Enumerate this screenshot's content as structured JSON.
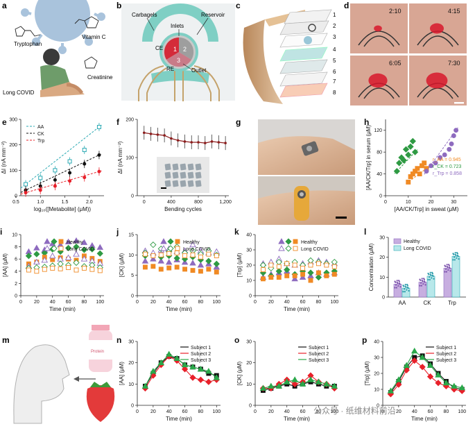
{
  "figure": {
    "panel_letters": [
      "a",
      "b",
      "c",
      "d",
      "e",
      "f",
      "g",
      "h",
      "i",
      "j",
      "k",
      "l",
      "m",
      "n",
      "o",
      "p"
    ],
    "colors": {
      "AA": "#2aa9b3",
      "CK": "#111111",
      "Trp": "#e8202a",
      "aa_h": "#8e6bbf",
      "ck_h": "#2e9a43",
      "trp_h": "#f08a24",
      "healthy_fill": "#c7aee0",
      "covid_fill": "#b8e8ea",
      "s1": "#111111",
      "s2": "#e8202a",
      "s3": "#2aa84a",
      "teal_struct": "#7fcfc4",
      "chip_bg": "#eef1f2"
    }
  },
  "panel_a": {
    "labels": {
      "tryptophan": "Tryptophan",
      "vitamin_c": "Vitamin C",
      "creatinine": "Creatinine",
      "long_covid": "Long COVID"
    },
    "icons": [
      "virus-icon",
      "person-sitting-icon",
      "molecule-icon"
    ]
  },
  "panel_b": {
    "labels": {
      "carbagels": "Carbagels",
      "reservoir": "Reservoir",
      "inlets": "Inlets",
      "ce": "CE",
      "re": "RE",
      "outlet": "Outlet",
      "n1": "1",
      "n2": "2",
      "n3": "3"
    }
  },
  "panel_c": {
    "layers": [
      "1",
      "2",
      "3",
      "4",
      "5",
      "6",
      "7",
      "8"
    ]
  },
  "panel_d": {
    "times": [
      "2:10",
      "4:15",
      "6:05",
      "7:30"
    ]
  },
  "panel_g": {
    "icons": [
      "wrist-patch-photo",
      "forearm-patch-photo"
    ]
  },
  "panel_m": {
    "bottle_text": "Protein",
    "icons": [
      "person-profile-icon",
      "bottle-icon",
      "strawberry-icon"
    ]
  },
  "watermark": "公众号 · 纸维材料前沿",
  "chart_data": [
    {
      "panel": "e",
      "type": "scatter",
      "xlabel": "log₁₀([Metabolite] (μM))",
      "ylabel": "ΔI (nA mm⁻²)",
      "xlim": [
        0.6,
        2.3
      ],
      "ylim": [
        0,
        300
      ],
      "xticks": [
        "0.5",
        "1.0",
        "1.5",
        "2.0"
      ],
      "yticks": [
        "0",
        "100",
        "200",
        "300"
      ],
      "legend": [
        "AA",
        "CK",
        "Trp"
      ],
      "series": [
        {
          "name": "AA",
          "x": [
            0.7,
            1.0,
            1.3,
            1.6,
            1.9,
            2.2
          ],
          "y": [
            45,
            70,
            100,
            135,
            180,
            270
          ]
        },
        {
          "name": "CK",
          "x": [
            0.7,
            1.0,
            1.3,
            1.6,
            1.9,
            2.2
          ],
          "y": [
            22,
            38,
            62,
            90,
            125,
            160
          ]
        },
        {
          "name": "Trp",
          "x": [
            0.7,
            1.0,
            1.3,
            1.6,
            1.9,
            2.2
          ],
          "y": [
            12,
            22,
            38,
            58,
            72,
            95
          ]
        }
      ]
    },
    {
      "panel": "f",
      "type": "line",
      "xlabel": "Bending cycles",
      "ylabel": "ΔI (nA mm⁻²)",
      "xlim": [
        -100,
        1250
      ],
      "ylim": [
        0,
        200
      ],
      "xticks": [
        "0",
        "400",
        "800",
        "1,200"
      ],
      "yticks": [
        "0",
        "100",
        "200"
      ],
      "series": [
        {
          "name": "",
          "x": [
            0,
            100,
            200,
            300,
            400,
            500,
            600,
            700,
            800,
            900,
            1000,
            1100,
            1200
          ],
          "y": [
            165,
            162,
            160,
            158,
            150,
            145,
            142,
            140,
            140,
            138,
            142,
            140,
            138
          ]
        }
      ]
    },
    {
      "panel": "h",
      "type": "scatter",
      "xlabel": "[AA/CK/Trp] in sweat (μM)",
      "ylabel": "[AA/CK/Trp] in serum (μM)",
      "xlim": [
        0,
        36
      ],
      "ylim": [
        0,
        140
      ],
      "xticks": [
        "0",
        "10",
        "20",
        "30"
      ],
      "yticks": [
        "0",
        "40",
        "80",
        "120"
      ],
      "annotations": [
        "r_AA = 0.945",
        "r_CK = 0.723",
        "r_Trp = 0.858"
      ],
      "series": [
        {
          "name": "AA",
          "x": [
            5,
            6,
            7,
            8,
            9,
            10,
            11,
            12,
            13
          ],
          "y": [
            45,
            60,
            70,
            65,
            85,
            75,
            90,
            100,
            80
          ]
        },
        {
          "name": "CK",
          "x": [
            10,
            11,
            12,
            13,
            14,
            15,
            16,
            17,
            18
          ],
          "y": [
            25,
            35,
            40,
            45,
            50,
            40,
            55,
            60,
            50
          ]
        },
        {
          "name": "Trp",
          "x": [
            18,
            20,
            22,
            24,
            26,
            28,
            29,
            30,
            31
          ],
          "y": [
            45,
            55,
            60,
            70,
            75,
            85,
            95,
            110,
            120
          ]
        }
      ]
    },
    {
      "panel": "i",
      "type": "scatter",
      "xlabel": "Time (min)",
      "ylabel": "[AA] (μM)",
      "xlim": [
        0,
        105
      ],
      "ylim": [
        0,
        10
      ],
      "xticks": [
        "0",
        "20",
        "40",
        "60",
        "80",
        "100"
      ],
      "yticks": [
        "0",
        "2",
        "4",
        "6",
        "8",
        "10"
      ],
      "legend": [
        "Healthy",
        "Long COVID"
      ],
      "x": [
        10,
        20,
        30,
        40,
        50,
        60,
        70,
        80,
        90,
        100
      ],
      "series": [
        {
          "name": "Healthy",
          "y": [
            7.2,
            7.8,
            7.5,
            8.5,
            8.3,
            8.8,
            9.0,
            8.7,
            8.2,
            7.9
          ]
        },
        {
          "name": "Healthy",
          "y": [
            6.5,
            6.8,
            7.0,
            7.6,
            7.2,
            7.8,
            8.0,
            7.5,
            7.6,
            6.9
          ]
        },
        {
          "name": "Healthy",
          "y": [
            5.2,
            5.5,
            6.3,
            5.9,
            6.2,
            6.0,
            5.8,
            6.5,
            6.1,
            5.6
          ]
        },
        {
          "name": "Long COVID",
          "y": [
            4.8,
            5.5,
            5.8,
            6.5,
            6.0,
            6.2,
            6.8,
            6.0,
            5.7,
            5.3
          ]
        },
        {
          "name": "Long COVID",
          "y": [
            4.5,
            4.6,
            4.7,
            4.9,
            5.2,
            5.0,
            5.4,
            4.8,
            5.0,
            4.6
          ]
        },
        {
          "name": "Long COVID",
          "y": [
            4.2,
            4.0,
            4.3,
            4.5,
            4.4,
            4.6,
            4.2,
            4.5,
            4.3,
            4.1
          ]
        }
      ]
    },
    {
      "panel": "j",
      "type": "scatter",
      "xlabel": "Time (min)",
      "ylabel": "[CK] (μM)",
      "xlim": [
        0,
        105
      ],
      "ylim": [
        0,
        15
      ],
      "xticks": [
        "0",
        "20",
        "40",
        "60",
        "80",
        "100"
      ],
      "yticks": [
        "0",
        "5",
        "10",
        "15"
      ],
      "legend": [
        "Healthy",
        "Long COVID"
      ],
      "x": [
        10,
        20,
        30,
        40,
        50,
        60,
        70,
        80,
        90,
        100
      ],
      "series": [
        {
          "name": "Healthy",
          "y": [
            8.5,
            9.0,
            8.5,
            8.2,
            8.8,
            8.2,
            8.0,
            7.5,
            7.8,
            7.0
          ]
        },
        {
          "name": "Healthy",
          "y": [
            9.8,
            10.0,
            9.5,
            9.8,
            9.2,
            9.0,
            9.5,
            8.8,
            8.5,
            7.8
          ]
        },
        {
          "name": "Healthy",
          "y": [
            7.0,
            7.2,
            6.5,
            6.8,
            7.0,
            6.5,
            6.2,
            6.0,
            6.5,
            5.8
          ]
        },
        {
          "name": "Long COVID",
          "y": [
            11.0,
            10.5,
            11.2,
            11.5,
            10.8,
            11.0,
            12.5,
            11.0,
            10.5,
            10.8
          ]
        },
        {
          "name": "Long COVID",
          "y": [
            10.5,
            12.5,
            11.5,
            10.8,
            12.0,
            10.5,
            11.0,
            10.2,
            11.0,
            10.0
          ]
        },
        {
          "name": "Long COVID",
          "y": [
            10.2,
            9.8,
            10.0,
            10.3,
            10.5,
            9.8,
            10.0,
            9.5,
            10.2,
            9.8
          ]
        }
      ]
    },
    {
      "panel": "k",
      "type": "scatter",
      "xlabel": "Time (min)",
      "ylabel": "[Trp] (μM)",
      "xlim": [
        0,
        105
      ],
      "ylim": [
        0,
        40
      ],
      "xticks": [
        "0",
        "20",
        "40",
        "60",
        "80",
        "100"
      ],
      "yticks": [
        "0",
        "10",
        "20",
        "30",
        "40"
      ],
      "legend": [
        "Healthy",
        "Long COVID"
      ],
      "x": [
        10,
        20,
        30,
        40,
        50,
        60,
        70,
        80,
        90,
        100
      ],
      "series": [
        {
          "name": "Healthy",
          "y": [
            12,
            14,
            15,
            16,
            11,
            12,
            13,
            15,
            14,
            15
          ]
        },
        {
          "name": "Healthy",
          "y": [
            15,
            13,
            16,
            17,
            14,
            16,
            15,
            12,
            15,
            16
          ]
        },
        {
          "name": "Healthy",
          "y": [
            11,
            12,
            12,
            13,
            13,
            14,
            10,
            15,
            13,
            14
          ]
        },
        {
          "name": "Long COVID",
          "y": [
            21,
            22,
            24,
            21,
            20,
            21,
            22,
            23,
            22,
            21
          ]
        },
        {
          "name": "Long COVID",
          "y": [
            20,
            18,
            22,
            21,
            22,
            20,
            23,
            22,
            21,
            22
          ]
        },
        {
          "name": "Long COVID",
          "y": [
            17,
            20,
            19,
            21,
            20,
            18,
            20,
            21,
            20,
            19
          ]
        }
      ]
    },
    {
      "panel": "l",
      "type": "bar",
      "categories": [
        "AA",
        "CK",
        "Trp"
      ],
      "ylabel": "Concentration (μM)",
      "ylim": [
        0,
        30
      ],
      "yticks": [
        "0",
        "10",
        "20",
        "30"
      ],
      "legend": [
        "Healthy",
        "Long COVID"
      ],
      "series": [
        {
          "name": "Healthy",
          "values": [
            6.5,
            7.5,
            14.5
          ]
        },
        {
          "name": "Long COVID",
          "values": [
            4.5,
            10.5,
            20.5
          ]
        }
      ]
    },
    {
      "panel": "n",
      "type": "line",
      "xlabel": "Time (min)",
      "ylabel": "[AA] (μM)",
      "xlim": [
        0,
        105
      ],
      "ylim": [
        0,
        30
      ],
      "xticks": [
        "0",
        "20",
        "40",
        "60",
        "80",
        "100"
      ],
      "yticks": [
        "0",
        "10",
        "20",
        "30"
      ],
      "legend": [
        "Subject 1",
        "Subject 2",
        "Subject 3"
      ],
      "x": [
        10,
        20,
        30,
        40,
        50,
        60,
        70,
        80,
        90,
        100
      ],
      "series": [
        {
          "name": "Subject 1",
          "y": [
            9,
            15,
            20,
            23,
            22,
            19,
            18,
            17,
            15,
            14
          ]
        },
        {
          "name": "Subject 2",
          "y": [
            8,
            14,
            19,
            23,
            21,
            17,
            13,
            12,
            11,
            12
          ]
        },
        {
          "name": "Subject 3",
          "y": [
            9,
            16,
            20,
            24,
            22,
            19,
            18,
            17,
            16,
            13
          ]
        }
      ]
    },
    {
      "panel": "o",
      "type": "line",
      "xlabel": "Time (min)",
      "ylabel": "[CK] (μM)",
      "xlim": [
        0,
        105
      ],
      "ylim": [
        0,
        30
      ],
      "xticks": [
        "0",
        "20",
        "40",
        "60",
        "80",
        "100"
      ],
      "yticks": [
        "0",
        "10",
        "20",
        "30"
      ],
      "legend": [
        "Subject 1",
        "Subject 2",
        "Subject 3"
      ],
      "x": [
        10,
        20,
        30,
        40,
        50,
        60,
        70,
        80,
        90,
        100
      ],
      "series": [
        {
          "name": "Subject 1",
          "y": [
            7,
            8,
            9,
            10,
            9,
            10,
            11,
            10,
            9,
            9
          ]
        },
        {
          "name": "Subject 2",
          "y": [
            8,
            8,
            10,
            12,
            10,
            11,
            14,
            11,
            10,
            8
          ]
        },
        {
          "name": "Subject 3",
          "y": [
            8,
            9,
            9,
            11,
            12,
            10,
            12,
            11,
            10,
            9
          ]
        }
      ]
    },
    {
      "panel": "p",
      "type": "line",
      "xlabel": "Time (min)",
      "ylabel": "[Trp] (μM)",
      "xlim": [
        0,
        105
      ],
      "ylim": [
        0,
        40
      ],
      "xticks": [
        "0",
        "20",
        "40",
        "60",
        "80",
        "100"
      ],
      "yticks": [
        "0",
        "10",
        "20",
        "30",
        "40"
      ],
      "legend": [
        "Subject 1",
        "Subject 2",
        "Subject 3"
      ],
      "x": [
        10,
        20,
        30,
        40,
        50,
        60,
        70,
        80,
        90,
        100
      ],
      "series": [
        {
          "name": "Subject 1",
          "y": [
            8,
            15,
            24,
            30,
            31,
            26,
            20,
            15,
            11,
            10
          ]
        },
        {
          "name": "Subject 2",
          "y": [
            7,
            13,
            22,
            28,
            24,
            18,
            14,
            12,
            10,
            9
          ]
        },
        {
          "name": "Subject 3",
          "y": [
            9,
            16,
            25,
            34,
            30,
            25,
            19,
            14,
            12,
            11
          ]
        }
      ]
    }
  ]
}
